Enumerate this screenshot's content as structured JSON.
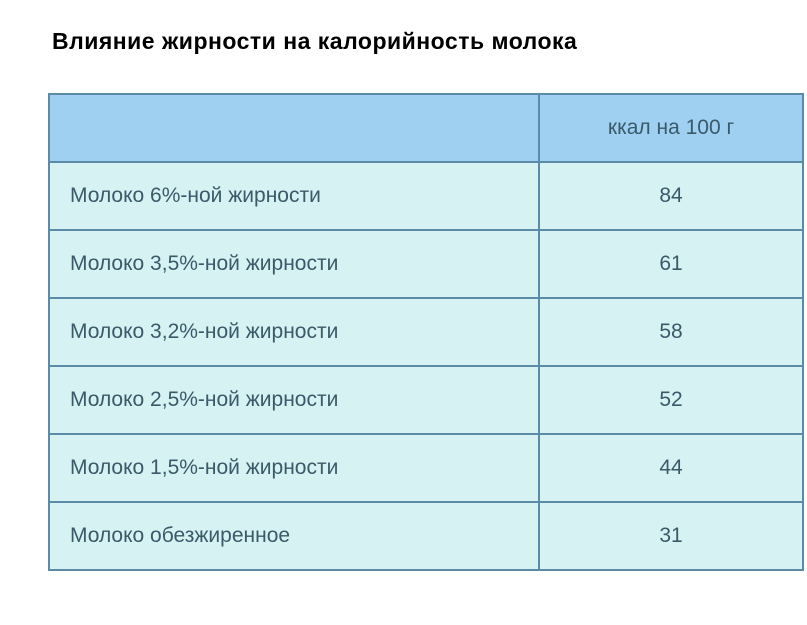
{
  "title": "Влияние жирности на калорийность молока",
  "table": {
    "border_color": "#5c8ba8",
    "header_bg": "#9fd0f2",
    "row_bg": "#d6f2f2",
    "text_color": "#3a5a6a",
    "columns": {
      "product_header": "",
      "value_header": "ккал на 100 г"
    },
    "rows": [
      {
        "product": "Молоко 6%-ной жирности",
        "value": "84"
      },
      {
        "product": "Молоко 3,5%-ной жирности",
        "value": "61"
      },
      {
        "product": "Молоко 3,2%-ной жирности",
        "value": "58"
      },
      {
        "product": "Молоко 2,5%-ной жирности",
        "value": "52"
      },
      {
        "product": "Молоко 1,5%-ной жирности",
        "value": "44"
      },
      {
        "product": "Молоко обезжиренное",
        "value": "31"
      }
    ]
  }
}
